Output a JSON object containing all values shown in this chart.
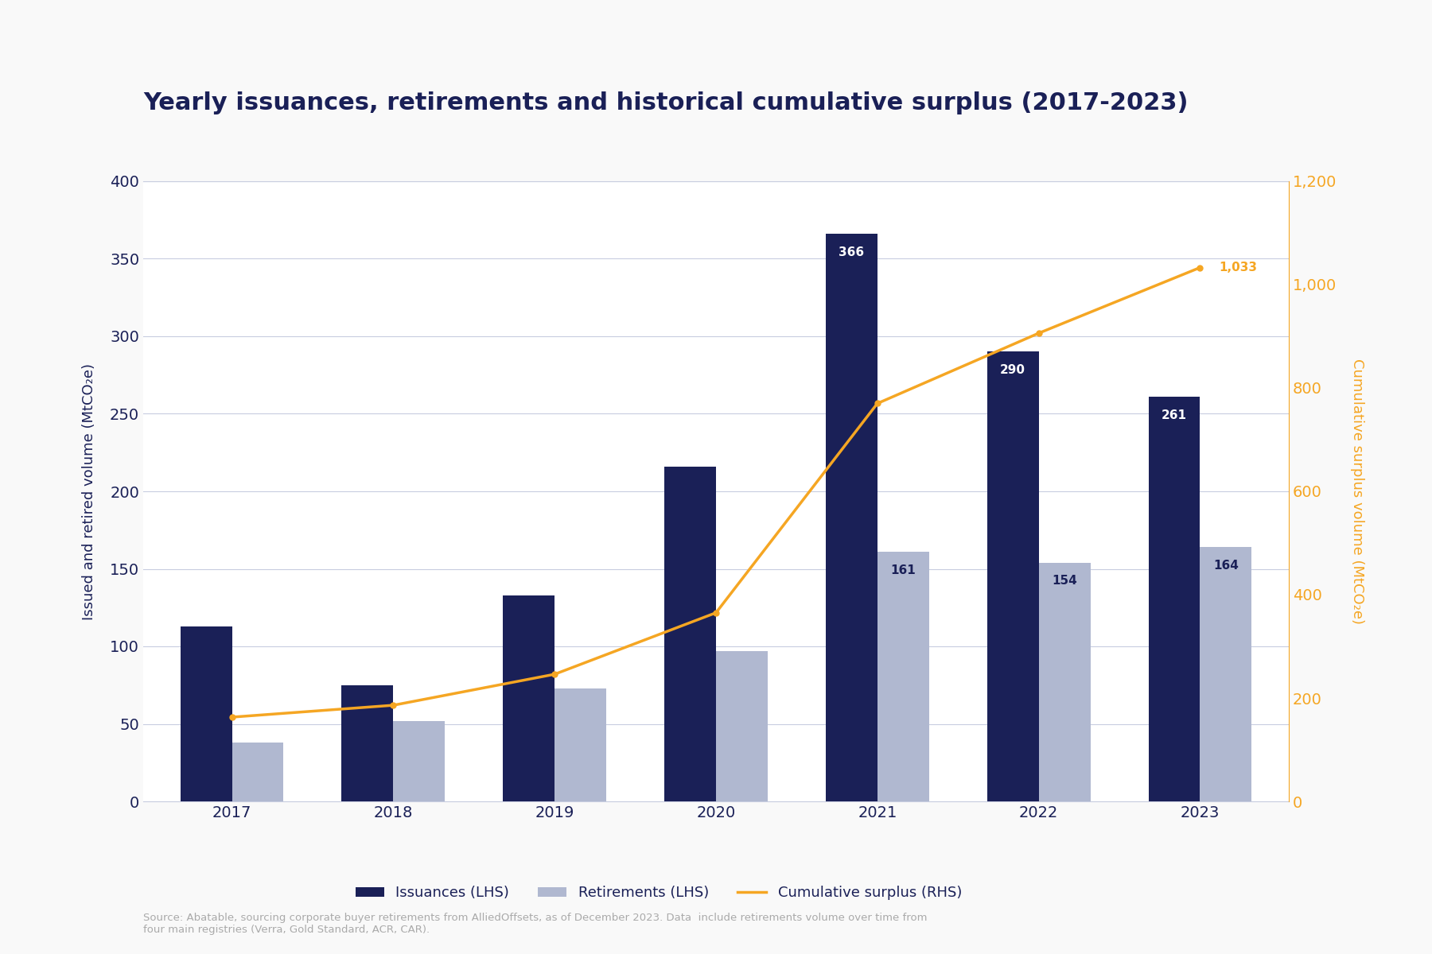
{
  "title": "Yearly issuances, retirements and historical cumulative surplus (2017-2023)",
  "title_color": "#1a2057",
  "title_fontsize": 22,
  "categories": [
    "2017",
    "2018",
    "2019",
    "2020",
    "2021",
    "2022",
    "2023"
  ],
  "issuances": [
    113,
    75,
    133,
    216,
    366,
    290,
    261
  ],
  "retirements": [
    38,
    52,
    73,
    97,
    161,
    154,
    164
  ],
  "cumulative_surplus": [
    163,
    186,
    246,
    365,
    770,
    906,
    1033
  ],
  "issuance_labels": [
    "",
    "",
    "",
    "",
    "366",
    "290",
    "261"
  ],
  "retirement_labels": [
    "",
    "",
    "",
    "",
    "161",
    "154",
    "164"
  ],
  "cumulative_label": "1,033",
  "bar_width": 0.32,
  "issuance_color": "#1a2057",
  "retirement_color": "#b0b8d0",
  "line_color": "#f5a623",
  "lhs_ylabel": "Issued and retired volume (MtCO₂e)",
  "rhs_ylabel": "Cumulative surplus volume (MtCO₂e)",
  "lhs_ylim": [
    0,
    400
  ],
  "rhs_ylim": [
    0,
    1200
  ],
  "lhs_yticks": [
    0,
    50,
    100,
    150,
    200,
    250,
    300,
    350,
    400
  ],
  "rhs_yticks": [
    0,
    200,
    400,
    600,
    800,
    1000,
    1200
  ],
  "legend_issuances": "Issuances (LHS)",
  "legend_retirements": "Retirements (LHS)",
  "legend_line": "Cumulative surplus (RHS)",
  "source_text": "Source: Abatable, sourcing corporate buyer retirements from AlliedOffsets, as of December 2023. Data  include retirements volume over time from\nfour main registries (Verra, Gold Standard, ACR, CAR).",
  "background_color": "#f9f9f9",
  "plot_bg_color": "#ffffff",
  "grid_color": "#c8cde0",
  "axis_label_color": "#1a2057",
  "tick_color": "#1a2057",
  "tick_fontsize": 14,
  "ylabel_fontsize": 13,
  "label_fontsize": 11
}
